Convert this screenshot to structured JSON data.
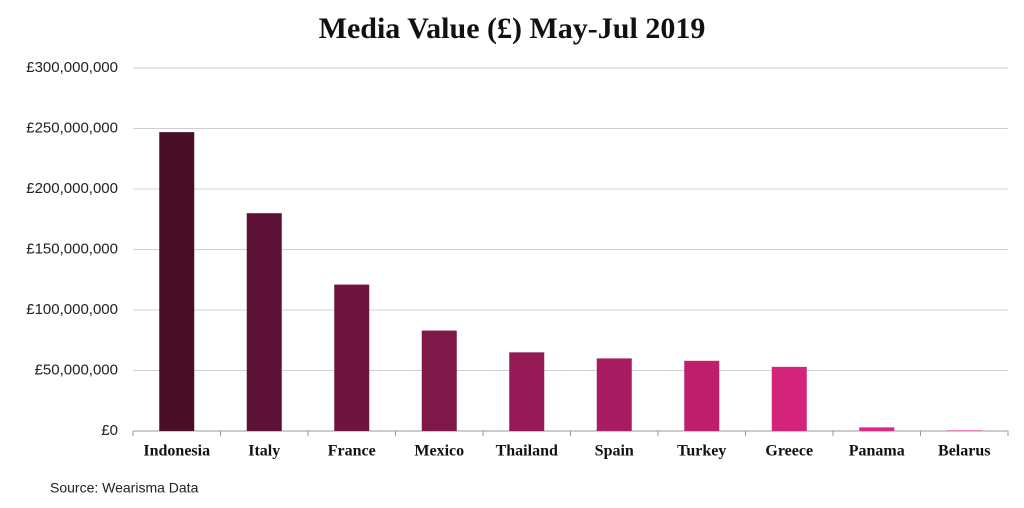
{
  "chart_data": {
    "type": "bar",
    "title": "Media Value (£) May-Jul 2019",
    "categories": [
      "Indonesia",
      "Italy",
      "France",
      "Mexico",
      "Thailand",
      "Spain",
      "Turkey",
      "Greece",
      "Panama",
      "Belarus"
    ],
    "values": [
      247000000,
      180000000,
      121000000,
      83000000,
      65000000,
      60000000,
      58000000,
      53000000,
      3000000,
      500000
    ],
    "colors": [
      "#4a0f27",
      "#5d1135",
      "#6f143f",
      "#7f1748",
      "#951a56",
      "#a81c61",
      "#bd1f6d",
      "#d3237b",
      "#de2786",
      "#e6338f"
    ],
    "ylim": [
      0,
      300000000
    ],
    "yticks": [
      {
        "value": 0,
        "label": "£0"
      },
      {
        "value": 50000000,
        "label": "£50,000,000"
      },
      {
        "value": 100000000,
        "label": "£100,000,000"
      },
      {
        "value": 150000000,
        "label": "£150,000,000"
      },
      {
        "value": 200000000,
        "label": "£200,000,000"
      },
      {
        "value": 250000000,
        "label": "£250,000,000"
      },
      {
        "value": 300000000,
        "label": "£300,000,000"
      }
    ],
    "grid": true,
    "source": "Source: Wearisma Data"
  }
}
